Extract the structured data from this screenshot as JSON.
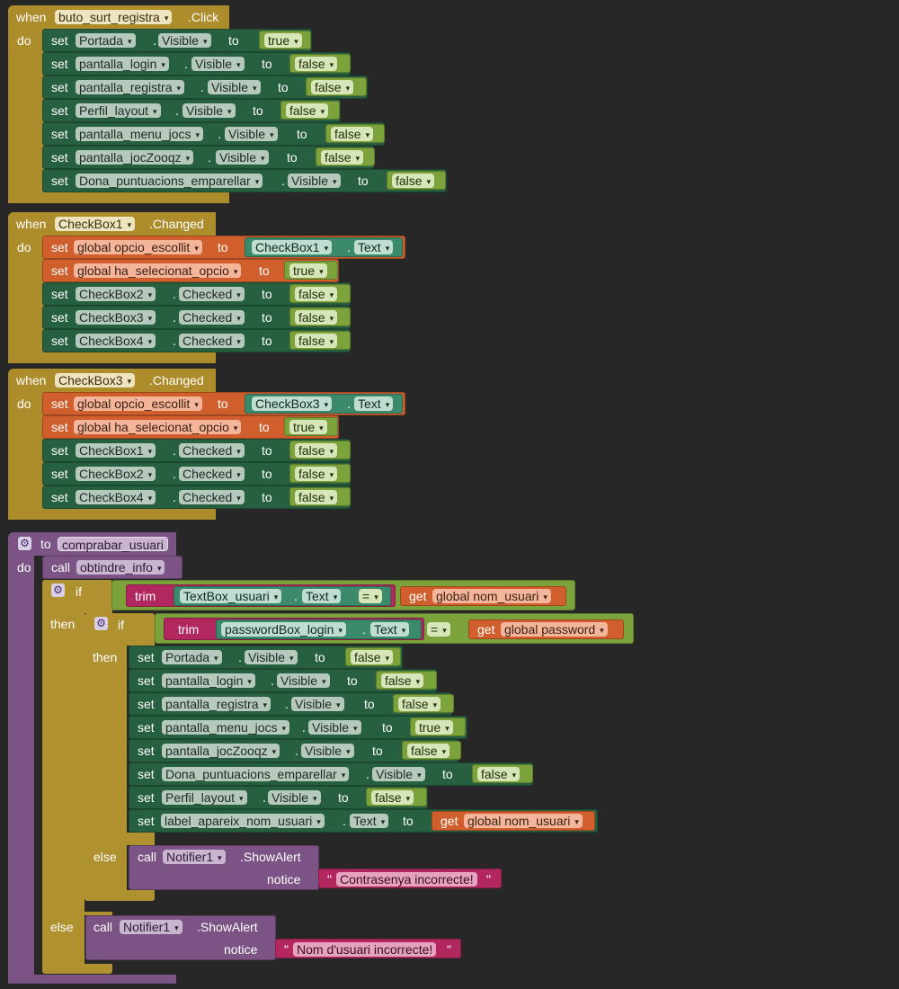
{
  "event1": {
    "when": "when",
    "do": "do",
    "component": "buto_surt_registra",
    "event": ".Click",
    "statements": [
      {
        "set": "set",
        "component": "Portada",
        "dot": ".",
        "property": "Visible",
        "to": "to",
        "value": "true"
      },
      {
        "set": "set",
        "component": "pantalla_login",
        "dot": ".",
        "property": "Visible",
        "to": "to",
        "value": "false"
      },
      {
        "set": "set",
        "component": "pantalla_registra",
        "dot": ".",
        "property": "Visible",
        "to": "to",
        "value": "false"
      },
      {
        "set": "set",
        "component": "Perfil_layout",
        "dot": ".",
        "property": "Visible",
        "to": "to",
        "value": "false"
      },
      {
        "set": "set",
        "component": "pantalla_menu_jocs",
        "dot": ".",
        "property": "Visible",
        "to": "to",
        "value": "false"
      },
      {
        "set": "set",
        "component": "pantalla_jocZooqz",
        "dot": ".",
        "property": "Visible",
        "to": "to",
        "value": "false"
      },
      {
        "set": "set",
        "component": "Dona_puntuacions_emparellar",
        "dot": ".",
        "property": "Visible",
        "to": "to",
        "value": "false"
      }
    ]
  },
  "event2": {
    "when": "when",
    "do": "do",
    "component": "CheckBox1",
    "event": ".Changed",
    "global1": {
      "set": "set",
      "var": "global opcio_escollit",
      "to": "to",
      "component": "CheckBox1",
      "dot": ".",
      "property": "Text"
    },
    "global2": {
      "set": "set",
      "var": "global ha_selecionat_opcio",
      "to": "to",
      "value": "true"
    },
    "statements": [
      {
        "set": "set",
        "component": "CheckBox2",
        "dot": ".",
        "property": "Checked",
        "to": "to",
        "value": "false"
      },
      {
        "set": "set",
        "component": "CheckBox3",
        "dot": ".",
        "property": "Checked",
        "to": "to",
        "value": "false"
      },
      {
        "set": "set",
        "component": "CheckBox4",
        "dot": ".",
        "property": "Checked",
        "to": "to",
        "value": "false"
      }
    ]
  },
  "event3": {
    "when": "when",
    "do": "do",
    "component": "CheckBox3",
    "event": ".Changed",
    "global1": {
      "set": "set",
      "var": "global opcio_escollit",
      "to": "to",
      "component": "CheckBox3",
      "dot": ".",
      "property": "Text"
    },
    "global2": {
      "set": "set",
      "var": "global ha_selecionat_opcio",
      "to": "to",
      "value": "true"
    },
    "statements": [
      {
        "set": "set",
        "component": "CheckBox1",
        "dot": ".",
        "property": "Checked",
        "to": "to",
        "value": "false"
      },
      {
        "set": "set",
        "component": "CheckBox2",
        "dot": ".",
        "property": "Checked",
        "to": "to",
        "value": "false"
      },
      {
        "set": "set",
        "component": "CheckBox4",
        "dot": ".",
        "property": "Checked",
        "to": "to",
        "value": "false"
      }
    ]
  },
  "procedure": {
    "to": "to",
    "name": "comprabar_usuari",
    "do": "do",
    "call_label": "call",
    "call_proc": "obtindre_info",
    "if1": {
      "if": "if",
      "then": "then",
      "else": "else",
      "trim": "trim",
      "component": "TextBox_usuari",
      "dot": ".",
      "property": "Text",
      "op": "=",
      "get": "get",
      "var": "global nom_usuari"
    },
    "if2": {
      "if": "if",
      "then": "then",
      "else": "else",
      "trim": "trim",
      "component": "passwordBox_login",
      "dot": ".",
      "property": "Text",
      "op": "=",
      "get": "get",
      "var": "global password"
    },
    "then_statements": [
      {
        "set": "set",
        "component": "Portada",
        "dot": ".",
        "property": "Visible",
        "to": "to",
        "value": "false"
      },
      {
        "set": "set",
        "component": "pantalla_login",
        "dot": ".",
        "property": "Visible",
        "to": "to",
        "value": "false"
      },
      {
        "set": "set",
        "component": "pantalla_registra",
        "dot": ".",
        "property": "Visible",
        "to": "to",
        "value": "false"
      },
      {
        "set": "set",
        "component": "pantalla_menu_jocs",
        "dot": ".",
        "property": "Visible",
        "to": "to",
        "value": "true"
      },
      {
        "set": "set",
        "component": "pantalla_jocZooqz",
        "dot": ".",
        "property": "Visible",
        "to": "to",
        "value": "false"
      },
      {
        "set": "set",
        "component": "Dona_puntuacions_emparellar",
        "dot": ".",
        "property": "Visible",
        "to": "to",
        "value": "false"
      },
      {
        "set": "set",
        "component": "Perfil_layout",
        "dot": ".",
        "property": "Visible",
        "to": "to",
        "value": "false"
      }
    ],
    "label_set": {
      "set": "set",
      "component": "label_apareix_nom_usuari",
      "dot": ".",
      "property": "Text",
      "to": "to",
      "get": "get",
      "var": "global nom_usuari"
    },
    "alert_inner": {
      "call": "call",
      "component": "Notifier1",
      "method": ".ShowAlert",
      "notice": "notice",
      "quote_open": "\"",
      "text": "Contrasenya incorrecte!",
      "quote_close": "\""
    },
    "alert_outer": {
      "call": "call",
      "component": "Notifier1",
      "method": ".ShowAlert",
      "notice": "notice",
      "quote_open": "\"",
      "text": "Nom d'usuari incorrecte!",
      "quote_close": "\""
    }
  }
}
